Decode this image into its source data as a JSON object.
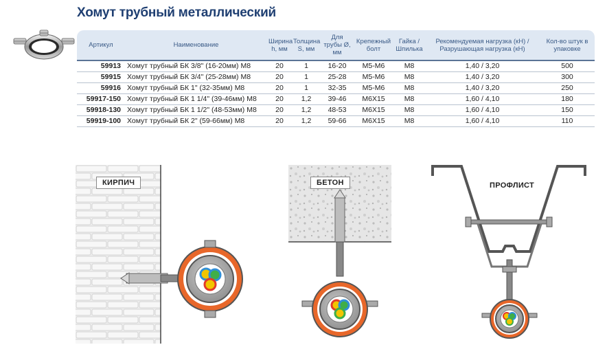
{
  "title": "Хомут трубный металлический",
  "table": {
    "headers": [
      "Артикул",
      "Наименование",
      "Ширина h, мм",
      "Толщина S, мм",
      "Для трубы Ø, мм",
      "Крепежный болт",
      "Гайка / Шпилька",
      "Рекомендуемая нагрузка (кН) / Разрушающая нагрузка (кН)",
      "Кол-во штук в упаковке"
    ],
    "rows": [
      {
        "article": "59913",
        "name": "Хомут трубный БК 3/8\" (16-20мм) М8",
        "width": "20",
        "thickness": "1",
        "pipe": "16-20",
        "bolt": "M5-M6",
        "nut": "M8",
        "load": "1,40 / 3,20",
        "qty": "500"
      },
      {
        "article": "59915",
        "name": "Хомут трубный БК 3/4\" (25-28мм) М8",
        "width": "20",
        "thickness": "1",
        "pipe": "25-28",
        "bolt": "M5-M6",
        "nut": "M8",
        "load": "1,40 / 3,20",
        "qty": "300"
      },
      {
        "article": "59916",
        "name": "Хомут трубный БК 1\" (32-35мм) М8",
        "width": "20",
        "thickness": "1",
        "pipe": "32-35",
        "bolt": "M5-M6",
        "nut": "M8",
        "load": "1,40 / 3,20",
        "qty": "250"
      },
      {
        "article": "59917-150",
        "name": "Хомут трубный БК 1 1/4\" (39-46мм) М8",
        "width": "20",
        "thickness": "1,2",
        "pipe": "39-46",
        "bolt": "M6X15",
        "nut": "M8",
        "load": "1,60 / 4,10",
        "qty": "180"
      },
      {
        "article": "59918-130",
        "name": "Хомут трубный БК 1 1/2\" (48-53мм) М8",
        "width": "20",
        "thickness": "1,2",
        "pipe": "48-53",
        "bolt": "M6X15",
        "nut": "M8",
        "load": "1,60 / 4,10",
        "qty": "150"
      },
      {
        "article": "59919-100",
        "name": "Хомут трубный БК 2\" (59-66мм) М8",
        "width": "20",
        "thickness": "1,2",
        "pipe": "59-66",
        "bolt": "M6X15",
        "nut": "M8",
        "load": "1,60 / 4,10",
        "qty": "110"
      }
    ]
  },
  "diagrams": {
    "brick": "КИРПИЧ",
    "concrete": "БЕТОН",
    "profile": "ПРОФЛИСТ"
  },
  "colors": {
    "title": "#1f3f72",
    "header_bg": "#dfe8f3",
    "clamp_orange": "#e8672a",
    "wire_yellow": "#f2c500",
    "wire_blue": "#2f8fd8",
    "wire_green": "#3fae49",
    "wire_red": "#e23a2a"
  }
}
